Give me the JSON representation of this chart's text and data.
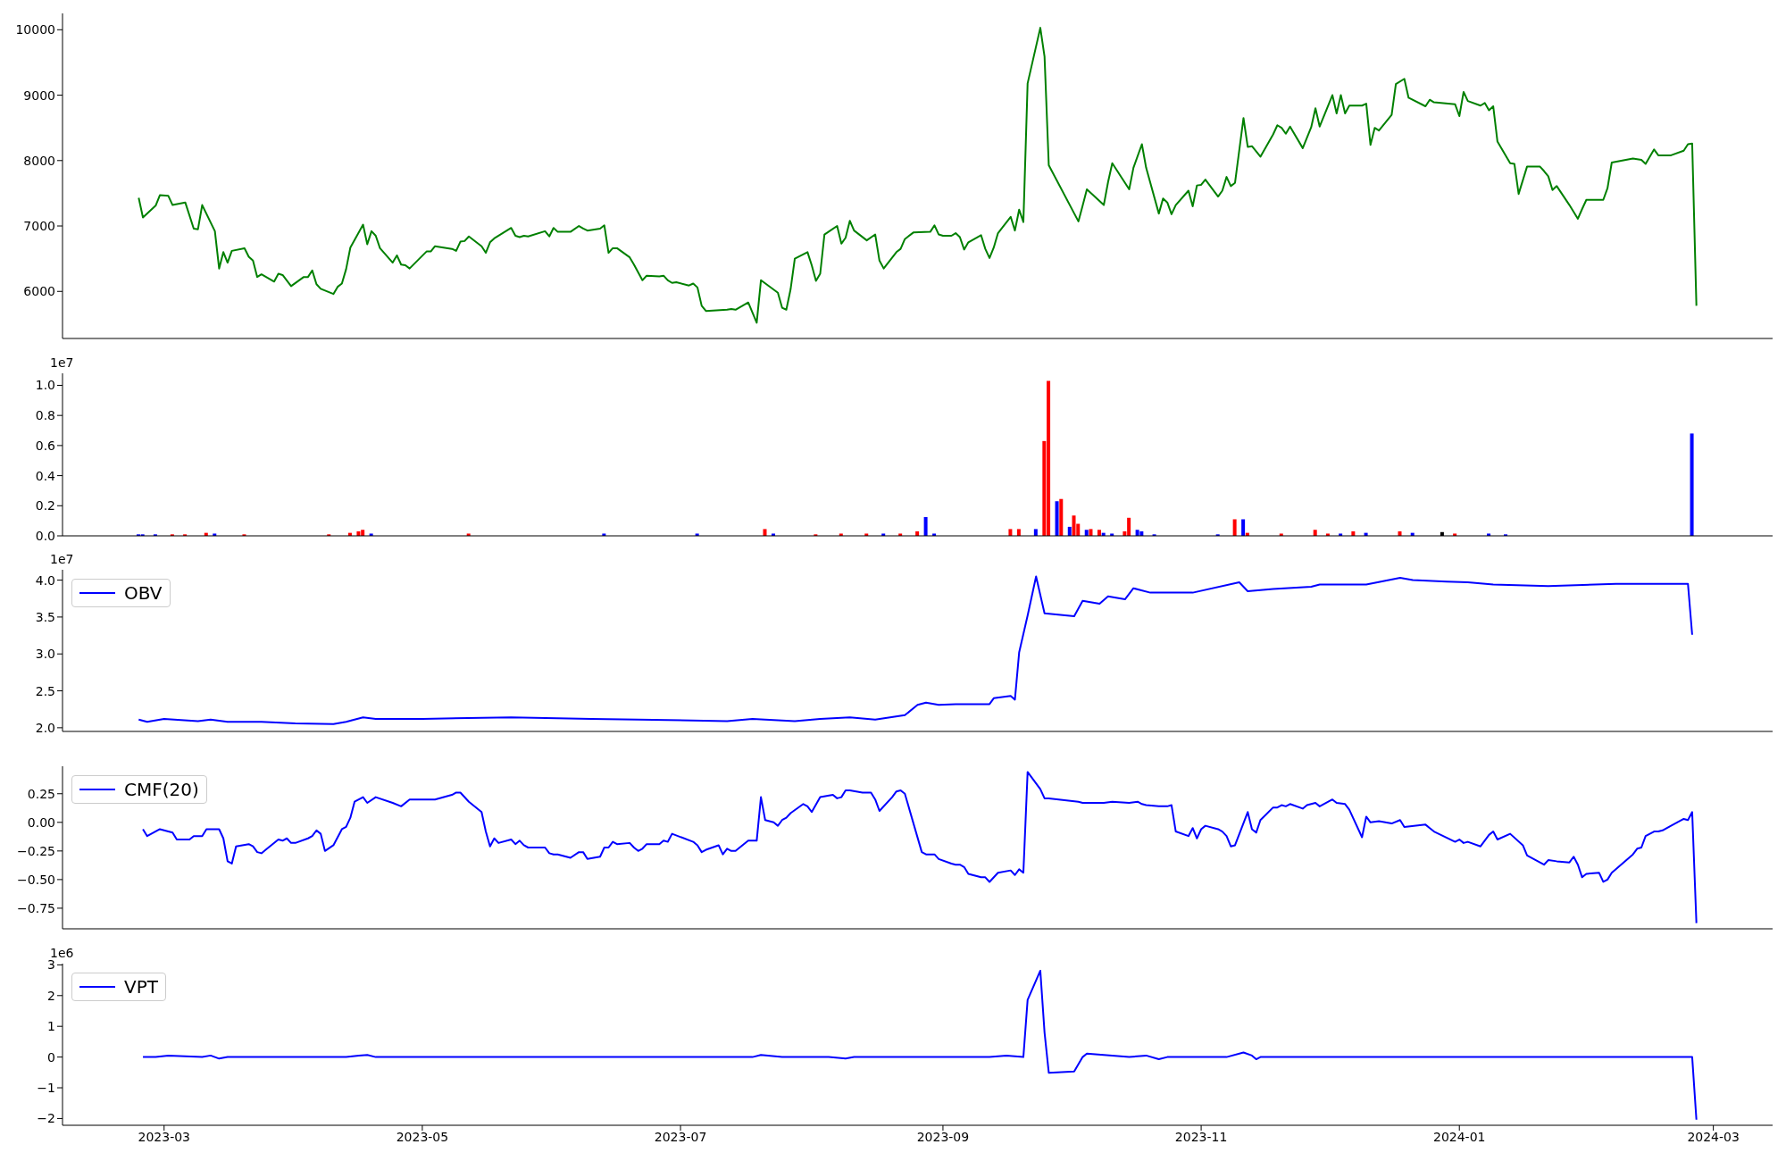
{
  "chart_data": [
    {
      "type": "line",
      "color": "#008000",
      "xlim": [
        "2023-02-05",
        "2024-03-15"
      ],
      "ylim": [
        5280,
        10250
      ],
      "yticks": [
        6000,
        7000,
        8000,
        9000,
        10000
      ],
      "tick_labels": "y",
      "x": [
        "2023-02-23",
        "2023-02-24",
        "2023-02-27",
        "2023-02-28",
        "2023-03-02",
        "2023-03-03",
        "2023-03-06",
        "2023-03-08",
        "2023-03-09",
        "2023-03-10",
        "2023-03-13",
        "2023-03-14",
        "2023-03-15",
        "2023-03-16",
        "2023-03-17",
        "2023-03-20",
        "2023-03-21",
        "2023-03-22",
        "2023-03-23",
        "2023-03-24",
        "2023-03-27",
        "2023-03-28",
        "2023-03-29",
        "2023-03-31",
        "2023-04-03",
        "2023-04-04",
        "2023-04-05",
        "2023-04-06",
        "2023-04-07",
        "2023-04-10",
        "2023-04-11",
        "2023-04-12",
        "2023-04-13",
        "2023-04-14",
        "2023-04-17",
        "2023-04-18",
        "2023-04-19",
        "2023-04-20",
        "2023-04-21",
        "2023-04-24",
        "2023-04-25",
        "2023-04-26",
        "2023-04-27",
        "2023-04-28",
        "2023-05-02",
        "2023-05-03",
        "2023-05-04",
        "2023-05-08",
        "2023-05-09",
        "2023-05-10",
        "2023-05-11",
        "2023-05-12",
        "2023-05-15",
        "2023-05-16",
        "2023-05-17",
        "2023-05-18",
        "2023-05-22",
        "2023-05-23",
        "2023-05-24",
        "2023-05-25",
        "2023-05-26",
        "2023-05-30",
        "2023-05-31",
        "2023-06-01",
        "2023-06-02",
        "2023-06-05",
        "2023-06-07",
        "2023-06-08",
        "2023-06-09",
        "2023-06-12",
        "2023-06-13",
        "2023-06-14",
        "2023-06-15",
        "2023-06-16",
        "2023-06-19",
        "2023-06-20",
        "2023-06-22",
        "2023-06-23",
        "2023-06-26",
        "2023-06-27",
        "2023-06-28",
        "2023-06-29",
        "2023-06-30",
        "2023-07-03",
        "2023-07-04",
        "2023-07-05",
        "2023-07-06",
        "2023-07-07",
        "2023-07-12",
        "2023-07-13",
        "2023-07-14",
        "2023-07-17",
        "2023-07-19",
        "2023-07-20",
        "2023-07-24",
        "2023-07-25",
        "2023-07-26",
        "2023-07-27",
        "2023-07-28",
        "2023-07-31",
        "2023-08-01",
        "2023-08-02",
        "2023-08-03",
        "2023-08-04",
        "2023-08-07",
        "2023-08-08",
        "2023-08-09",
        "2023-08-10",
        "2023-08-11",
        "2023-08-14",
        "2023-08-16",
        "2023-08-17",
        "2023-08-18",
        "2023-08-21",
        "2023-08-22",
        "2023-08-23",
        "2023-08-25",
        "2023-08-29",
        "2023-08-30",
        "2023-08-31",
        "2023-09-01",
        "2023-09-03",
        "2023-09-04",
        "2023-09-05",
        "2023-09-06",
        "2023-09-07",
        "2023-09-10",
        "2023-09-11",
        "2023-09-12",
        "2023-09-13",
        "2023-09-14",
        "2023-09-17",
        "2023-09-18",
        "2023-09-19",
        "2023-09-20",
        "2023-09-21",
        "2023-09-24",
        "2023-09-25",
        "2023-09-26",
        "2023-10-03",
        "2023-10-04",
        "2023-10-05",
        "2023-10-09",
        "2023-10-10",
        "2023-10-11",
        "2023-10-15",
        "2023-10-16",
        "2023-10-18",
        "2023-10-19",
        "2023-10-22",
        "2023-10-23",
        "2023-10-24",
        "2023-10-25",
        "2023-10-26",
        "2023-10-29",
        "2023-10-30",
        "2023-10-31",
        "2023-11-01",
        "2023-11-02",
        "2023-11-05",
        "2023-11-06",
        "2023-11-07",
        "2023-11-08",
        "2023-11-09",
        "2023-11-11",
        "2023-11-12",
        "2023-11-13",
        "2023-11-15",
        "2023-11-18",
        "2023-11-19",
        "2023-11-20",
        "2023-11-21",
        "2023-11-22",
        "2023-11-25",
        "2023-11-27",
        "2023-11-28",
        "2023-11-29",
        "2023-12-02",
        "2023-12-03",
        "2023-12-04",
        "2023-12-05",
        "2023-12-06",
        "2023-12-09",
        "2023-12-10",
        "2023-12-11",
        "2023-12-12",
        "2023-12-13",
        "2023-12-16",
        "2023-12-17",
        "2023-12-19",
        "2023-12-20",
        "2023-12-24",
        "2023-12-25",
        "2023-12-26",
        "2023-12-31",
        "2024-01-01",
        "2024-01-02",
        "2024-01-03",
        "2024-01-06",
        "2024-01-07",
        "2024-01-08",
        "2024-01-09",
        "2024-01-10",
        "2024-01-13",
        "2024-01-14",
        "2024-01-15",
        "2024-01-17",
        "2024-01-20",
        "2024-01-21",
        "2024-01-22",
        "2024-01-23",
        "2024-01-24",
        "2024-01-27",
        "2024-01-29",
        "2024-01-30",
        "2024-01-31",
        "2024-02-04",
        "2024-02-05",
        "2024-02-06",
        "2024-02-11",
        "2024-02-12",
        "2024-02-13",
        "2024-02-14",
        "2024-02-16",
        "2024-02-17",
        "2024-02-20",
        "2024-02-23",
        "2024-02-24",
        "2024-02-25",
        "2024-02-26"
      ],
      "values": [
        7430,
        7130,
        7310,
        7470,
        7460,
        7320,
        7360,
        6960,
        6950,
        7320,
        6920,
        6350,
        6600,
        6440,
        6620,
        6660,
        6530,
        6470,
        6220,
        6260,
        6150,
        6270,
        6250,
        6080,
        6220,
        6220,
        6320,
        6110,
        6040,
        5960,
        6070,
        6120,
        6340,
        6670,
        7020,
        6720,
        6920,
        6850,
        6660,
        6440,
        6550,
        6410,
        6400,
        6350,
        6610,
        6610,
        6690,
        6650,
        6620,
        6760,
        6770,
        6840,
        6690,
        6590,
        6750,
        6810,
        6970,
        6850,
        6830,
        6850,
        6840,
        6920,
        6840,
        6970,
        6910,
        6910,
        7000,
        6960,
        6930,
        6960,
        7010,
        6590,
        6660,
        6660,
        6520,
        6410,
        6170,
        6240,
        6230,
        6240,
        6170,
        6130,
        6140,
        6090,
        6120,
        6060,
        5780,
        5700,
        5720,
        5730,
        5720,
        5830,
        5520,
        6170,
        5980,
        5750,
        5720,
        6030,
        6500,
        6600,
        6400,
        6160,
        6270,
        6870,
        7000,
        6730,
        6820,
        7080,
        6930,
        6780,
        6870,
        6470,
        6350,
        6600,
        6650,
        6800,
        6900,
        6910,
        7010,
        6870,
        6850,
        6850,
        6890,
        6830,
        6640,
        6750,
        6860,
        6650,
        6510,
        6670,
        6890,
        7140,
        6930,
        7250,
        7060,
        9180,
        10030,
        9590,
        7930,
        7070,
        7310,
        7560,
        7320,
        7670,
        7960,
        7560,
        7890,
        8250,
        7890,
        7190,
        7420,
        7360,
        7180,
        7320,
        7540,
        7300,
        7620,
        7630,
        7710,
        7450,
        7540,
        7750,
        7610,
        7660,
        8650,
        8210,
        8220,
        8060,
        8400,
        8540,
        8500,
        8410,
        8520,
        8190,
        8510,
        8800,
        8520,
        9000,
        8720,
        9000,
        8720,
        8840,
        8840,
        8870,
        8240,
        8500,
        8460,
        8700,
        9170,
        9250,
        8960,
        8830,
        8930,
        8890,
        8860,
        8680,
        9050,
        8910,
        8840,
        8880,
        8770,
        8830,
        8290,
        7960,
        7950,
        7490,
        7910,
        7910,
        7840,
        7760,
        7550,
        7610,
        7320,
        7110,
        7260,
        7400,
        7400,
        7580,
        7970,
        8030,
        8020,
        8010,
        7950,
        8170,
        8080,
        8080,
        8150,
        8250,
        8260,
        5780
      ]
    },
    {
      "type": "bar",
      "xlim": [
        "2023-02-05",
        "2024-03-15"
      ],
      "ylim": [
        0,
        1.08
      ],
      "yticks": [
        {
          "value": 0,
          "label": "0.0"
        },
        0.2,
        0.4,
        0.6,
        0.8,
        {
          "value": 1,
          "label": "1.0"
        }
      ],
      "tick_labels": "y",
      "annotations": [
        "1e7"
      ],
      "x": [
        "2023-02-23",
        "2023-02-24",
        "2023-02-27",
        "2023-03-03",
        "2023-03-06",
        "2023-03-11",
        "2023-03-13",
        "2023-03-20",
        "2023-04-09",
        "2023-04-14",
        "2023-04-16",
        "2023-04-17",
        "2023-04-19",
        "2023-05-12",
        "2023-06-13",
        "2023-07-05",
        "2023-07-21",
        "2023-07-23",
        "2023-08-02",
        "2023-08-08",
        "2023-08-14",
        "2023-08-18",
        "2023-08-22",
        "2023-08-26",
        "2023-08-28",
        "2023-08-30",
        "2023-09-17",
        "2023-09-19",
        "2023-09-23",
        "2023-09-25",
        "2023-09-26",
        "2023-09-28",
        "2023-09-29",
        "2023-10-01",
        "2023-10-02",
        "2023-10-03",
        "2023-10-05",
        "2023-10-06",
        "2023-10-08",
        "2023-10-09",
        "2023-10-11",
        "2023-10-14",
        "2023-10-15",
        "2023-10-17",
        "2023-10-18",
        "2023-10-21",
        "2023-11-05",
        "2023-11-09",
        "2023-11-11",
        "2023-11-12",
        "2023-11-20",
        "2023-11-28",
        "2023-12-01",
        "2023-12-04",
        "2023-12-07",
        "2023-12-10",
        "2023-12-18",
        "2023-12-21",
        "2023-12-28",
        "2023-12-31",
        "2024-01-08",
        "2024-01-12",
        "2024-02-25"
      ],
      "values": [
        0.01,
        0.01,
        0.01,
        0.01,
        0.01,
        0.02,
        0.015,
        0.01,
        0.01,
        0.02,
        0.03,
        0.04,
        0.015,
        0.015,
        0.015,
        0.015,
        0.045,
        0.015,
        0.01,
        0.015,
        0.015,
        0.015,
        0.015,
        0.03,
        0.125,
        0.015,
        0.045,
        0.045,
        0.045,
        0.63,
        1.03,
        0.23,
        0.245,
        0.06,
        0.135,
        0.08,
        0.04,
        0.045,
        0.04,
        0.02,
        0.015,
        0.03,
        0.12,
        0.04,
        0.03,
        0.01,
        0.01,
        0.11,
        0.11,
        0.02,
        0.015,
        0.04,
        0.015,
        0.015,
        0.03,
        0.02,
        0.03,
        0.02,
        0.025,
        0.015,
        0.015,
        0.01,
        0.68
      ],
      "colors": [
        "#0000ff",
        "#0000ff",
        "#0000ff",
        "#ff0000",
        "#ff0000",
        "#ff0000",
        "#0000ff",
        "#ff0000",
        "#ff0000",
        "#ff0000",
        "#ff0000",
        "#ff0000",
        "#0000ff",
        "#ff0000",
        "#0000ff",
        "#0000ff",
        "#ff0000",
        "#0000ff",
        "#ff0000",
        "#ff0000",
        "#ff0000",
        "#0000ff",
        "#ff0000",
        "#ff0000",
        "#0000ff",
        "#0000ff",
        "#ff0000",
        "#ff0000",
        "#0000ff",
        "#ff0000",
        "#ff0000",
        "#0000ff",
        "#ff0000",
        "#0000ff",
        "#ff0000",
        "#ff0000",
        "#0000ff",
        "#ff0000",
        "#ff0000",
        "#0000ff",
        "#0000ff",
        "#ff0000",
        "#ff0000",
        "#0000ff",
        "#0000ff",
        "#0000ff",
        "#0000ff",
        "#ff0000",
        "#0000ff",
        "#ff0000",
        "#ff0000",
        "#ff0000",
        "#ff0000",
        "#0000ff",
        "#ff0000",
        "#0000ff",
        "#ff0000",
        "#0000ff",
        "#000000",
        "#ff0000",
        "#0000ff",
        "#0000ff",
        "#0000ff"
      ]
    },
    {
      "type": "line",
      "xlim": [
        "2023-02-05",
        "2024-03-15"
      ],
      "ylim": [
        1.95,
        4.14
      ],
      "yticks": [
        {
          "value": 2,
          "label": "2.0"
        },
        2.5,
        {
          "value": 3,
          "label": "3.0"
        },
        3.5,
        {
          "value": 4,
          "label": "4.0"
        }
      ],
      "tick_labels": "y",
      "legend": "top left",
      "annotations": [
        "1e7"
      ],
      "x": [
        "2023-02-23",
        "2023-02-25",
        "2023-03-01",
        "2023-03-09",
        "2023-03-12",
        "2023-03-16",
        "2023-03-24",
        "2023-04-01",
        "2023-04-10",
        "2023-04-13",
        "2023-04-17",
        "2023-04-20",
        "2023-05-01",
        "2023-05-22",
        "2023-06-10",
        "2023-06-21",
        "2023-07-12",
        "2023-07-18",
        "2023-07-28",
        "2023-08-03",
        "2023-08-10",
        "2023-08-16",
        "2023-08-23",
        "2023-08-26",
        "2023-08-28",
        "2023-08-31",
        "2023-09-04",
        "2023-09-12",
        "2023-09-13",
        "2023-09-17",
        "2023-09-18",
        "2023-09-19",
        "2023-09-21",
        "2023-09-23",
        "2023-09-25",
        "2023-10-02",
        "2023-10-04",
        "2023-10-08",
        "2023-10-10",
        "2023-10-14",
        "2023-10-16",
        "2023-10-20",
        "2023-10-30",
        "2023-11-10",
        "2023-11-12",
        "2023-11-18",
        "2023-11-27",
        "2023-11-29",
        "2023-12-10",
        "2023-12-18",
        "2023-12-21",
        "2023-12-29",
        "2024-01-03",
        "2024-01-09",
        "2024-01-22",
        "2024-02-07",
        "2024-02-24",
        "2024-02-25"
      ],
      "series": [
        {
          "name": "OBV",
          "color": "#0000ff",
          "values": [
            2.11,
            2.08,
            2.12,
            2.09,
            2.11,
            2.08,
            2.08,
            2.06,
            2.05,
            2.08,
            2.14,
            2.12,
            2.12,
            2.14,
            2.12,
            2.11,
            2.09,
            2.12,
            2.09,
            2.12,
            2.14,
            2.11,
            2.17,
            2.31,
            2.34,
            2.31,
            2.32,
            2.32,
            2.4,
            2.43,
            2.38,
            3.02,
            3.52,
            4.05,
            3.55,
            3.51,
            3.72,
            3.68,
            3.78,
            3.74,
            3.89,
            3.83,
            3.83,
            3.97,
            3.85,
            3.88,
            3.91,
            3.94,
            3.94,
            4.03,
            4.0,
            3.98,
            3.97,
            3.94,
            3.92,
            3.95,
            3.95,
            3.26
          ]
        }
      ]
    },
    {
      "type": "line",
      "xlim": [
        "2023-02-05",
        "2024-03-15"
      ],
      "ylim": [
        -0.93,
        0.49
      ],
      "yticks": [
        {
          "value": -0.75,
          "label": "−0.75"
        },
        {
          "value": -0.5,
          "label": "−0.50"
        },
        {
          "value": -0.25,
          "label": "−0.25"
        },
        {
          "value": 0,
          "label": "0.00"
        },
        0.25
      ],
      "tick_labels": "y",
      "legend": "top left",
      "x": [
        "2023-02-24",
        "2023-02-25",
        "2023-02-28",
        "2023-03-03",
        "2023-03-04",
        "2023-03-07",
        "2023-03-08",
        "2023-03-10",
        "2023-03-11",
        "2023-03-14",
        "2023-03-15",
        "2023-03-16",
        "2023-03-17",
        "2023-03-18",
        "2023-03-21",
        "2023-03-22",
        "2023-03-23",
        "2023-03-24",
        "2023-03-25",
        "2023-03-28",
        "2023-03-29",
        "2023-03-30",
        "2023-03-31",
        "2023-04-01",
        "2023-04-04",
        "2023-04-05",
        "2023-04-06",
        "2023-04-07",
        "2023-04-08",
        "2023-04-10",
        "2023-04-12",
        "2023-04-13",
        "2023-04-14",
        "2023-04-15",
        "2023-04-17",
        "2023-04-18",
        "2023-04-20",
        "2023-04-24",
        "2023-04-26",
        "2023-04-28",
        "2023-05-02",
        "2023-05-03",
        "2023-05-04",
        "2023-05-08",
        "2023-05-09",
        "2023-05-10",
        "2023-05-12",
        "2023-05-15",
        "2023-05-16",
        "2023-05-17",
        "2023-05-18",
        "2023-05-19",
        "2023-05-22",
        "2023-05-23",
        "2023-05-24",
        "2023-05-25",
        "2023-05-26",
        "2023-05-30",
        "2023-05-31",
        "2023-06-01",
        "2023-06-02",
        "2023-06-05",
        "2023-06-07",
        "2023-06-08",
        "2023-06-09",
        "2023-06-12",
        "2023-06-13",
        "2023-06-14",
        "2023-06-15",
        "2023-06-16",
        "2023-06-19",
        "2023-06-20",
        "2023-06-21",
        "2023-06-22",
        "2023-06-23",
        "2023-06-26",
        "2023-06-27",
        "2023-06-28",
        "2023-06-29",
        "2023-07-04",
        "2023-07-05",
        "2023-07-06",
        "2023-07-07",
        "2023-07-10",
        "2023-07-11",
        "2023-07-12",
        "2023-07-13",
        "2023-07-14",
        "2023-07-17",
        "2023-07-19",
        "2023-07-20",
        "2023-07-21",
        "2023-07-23",
        "2023-07-24",
        "2023-07-25",
        "2023-07-26",
        "2023-07-27",
        "2023-07-30",
        "2023-07-31",
        "2023-08-01",
        "2023-08-03",
        "2023-08-06",
        "2023-08-07",
        "2023-08-08",
        "2023-08-09",
        "2023-08-10",
        "2023-08-13",
        "2023-08-15",
        "2023-08-16",
        "2023-08-17",
        "2023-08-20",
        "2023-08-21",
        "2023-08-22",
        "2023-08-23",
        "2023-08-27",
        "2023-08-28",
        "2023-08-29",
        "2023-08-30",
        "2023-08-31",
        "2023-09-03",
        "2023-09-04",
        "2023-09-05",
        "2023-09-06",
        "2023-09-07",
        "2023-09-10",
        "2023-09-11",
        "2023-09-12",
        "2023-09-14",
        "2023-09-17",
        "2023-09-18",
        "2023-09-19",
        "2023-09-20",
        "2023-09-21",
        "2023-09-24",
        "2023-09-25",
        "2023-09-26",
        "2023-10-03",
        "2023-10-04",
        "2023-10-09",
        "2023-10-11",
        "2023-10-15",
        "2023-10-17",
        "2023-10-18",
        "2023-10-19",
        "2023-10-22",
        "2023-10-23",
        "2023-10-24",
        "2023-10-25",
        "2023-10-26",
        "2023-10-29",
        "2023-10-30",
        "2023-10-31",
        "2023-11-01",
        "2023-11-02",
        "2023-11-05",
        "2023-11-06",
        "2023-11-07",
        "2023-11-08",
        "2023-11-09",
        "2023-11-12",
        "2023-11-13",
        "2023-11-14",
        "2023-11-15",
        "2023-11-18",
        "2023-11-19",
        "2023-11-20",
        "2023-11-21",
        "2023-11-22",
        "2023-11-25",
        "2023-11-26",
        "2023-11-28",
        "2023-11-29",
        "2023-12-02",
        "2023-12-03",
        "2023-12-05",
        "2023-12-06",
        "2023-12-09",
        "2023-12-10",
        "2023-12-11",
        "2023-12-13",
        "2023-12-16",
        "2023-12-18",
        "2023-12-19",
        "2023-12-24",
        "2023-12-25",
        "2023-12-26",
        "2023-12-31",
        "2024-01-01",
        "2024-01-02",
        "2024-01-03",
        "2024-01-06",
        "2024-01-08",
        "2024-01-09",
        "2024-01-10",
        "2024-01-13",
        "2024-01-16",
        "2024-01-17",
        "2024-01-21",
        "2024-01-22",
        "2024-01-24",
        "2024-01-27",
        "2024-01-28",
        "2024-01-29",
        "2024-01-30",
        "2024-01-31",
        "2024-02-03",
        "2024-02-04",
        "2024-02-05",
        "2024-02-06",
        "2024-02-11",
        "2024-02-12",
        "2024-02-13",
        "2024-02-14",
        "2024-02-16",
        "2024-02-17",
        "2024-02-18",
        "2024-02-20",
        "2024-02-23",
        "2024-02-24",
        "2024-02-25",
        "2024-02-26"
      ],
      "series": [
        {
          "name": "CMF(20)",
          "color": "#0000ff",
          "values": [
            -0.06,
            -0.12,
            -0.06,
            -0.09,
            -0.15,
            -0.15,
            -0.12,
            -0.12,
            -0.06,
            -0.06,
            -0.14,
            -0.34,
            -0.36,
            -0.21,
            -0.19,
            -0.21,
            -0.26,
            -0.27,
            -0.24,
            -0.15,
            -0.16,
            -0.14,
            -0.18,
            -0.18,
            -0.14,
            -0.12,
            -0.07,
            -0.1,
            -0.25,
            -0.2,
            -0.06,
            -0.04,
            0.04,
            0.18,
            0.22,
            0.17,
            0.22,
            0.17,
            0.14,
            0.2,
            0.2,
            0.2,
            0.2,
            0.24,
            0.26,
            0.26,
            0.18,
            0.09,
            -0.08,
            -0.21,
            -0.14,
            -0.18,
            -0.15,
            -0.19,
            -0.16,
            -0.2,
            -0.22,
            -0.22,
            -0.27,
            -0.28,
            -0.28,
            -0.31,
            -0.26,
            -0.26,
            -0.32,
            -0.3,
            -0.22,
            -0.22,
            -0.17,
            -0.19,
            -0.18,
            -0.22,
            -0.25,
            -0.23,
            -0.19,
            -0.19,
            -0.16,
            -0.17,
            -0.1,
            -0.17,
            -0.2,
            -0.26,
            -0.24,
            -0.2,
            -0.28,
            -0.23,
            -0.25,
            -0.25,
            -0.16,
            -0.16,
            0.22,
            0.02,
            0,
            -0.03,
            0.02,
            0.04,
            0.08,
            0.16,
            0.14,
            0.09,
            0.22,
            0.24,
            0.21,
            0.22,
            0.28,
            0.28,
            0.26,
            0.26,
            0.2,
            0.1,
            0.22,
            0.27,
            0.28,
            0.25,
            -0.26,
            -0.28,
            -0.28,
            -0.28,
            -0.32,
            -0.36,
            -0.37,
            -0.37,
            -0.39,
            -0.45,
            -0.48,
            -0.48,
            -0.52,
            -0.44,
            -0.42,
            -0.46,
            -0.41,
            -0.44,
            0.44,
            0.29,
            0.21,
            0.21,
            0.18,
            0.17,
            0.17,
            0.18,
            0.17,
            0.18,
            0.16,
            0.15,
            0.14,
            0.14,
            0.14,
            0.15,
            -0.08,
            -0.12,
            -0.05,
            -0.14,
            -0.06,
            -0.03,
            -0.06,
            -0.08,
            -0.12,
            -0.21,
            -0.2,
            0.09,
            -0.06,
            -0.09,
            0.02,
            0.13,
            0.13,
            0.15,
            0.14,
            0.16,
            0.12,
            0.15,
            0.17,
            0.14,
            0.2,
            0.17,
            0.16,
            0.11,
            -0.13,
            0.05,
            0,
            0.01,
            -0.01,
            0.02,
            -0.04,
            -0.02,
            -0.05,
            -0.08,
            -0.17,
            -0.15,
            -0.18,
            -0.17,
            -0.21,
            -0.11,
            -0.08,
            -0.15,
            -0.1,
            -0.2,
            -0.29,
            -0.37,
            -0.33,
            -0.34,
            -0.35,
            -0.3,
            -0.37,
            -0.48,
            -0.45,
            -0.44,
            -0.52,
            -0.5,
            -0.44,
            -0.28,
            -0.23,
            -0.22,
            -0.12,
            -0.08,
            -0.08,
            -0.07,
            -0.03,
            0.03,
            0.02,
            0.09,
            -0.88
          ]
        }
      ]
    },
    {
      "type": "line",
      "xlim": [
        "2023-02-05",
        "2024-03-15"
      ],
      "ylim": [
        -2.22,
        3.04
      ],
      "yticks": [
        {
          "value": -2,
          "label": "−2"
        },
        {
          "value": -1,
          "label": "−1"
        },
        0,
        1,
        2,
        3
      ],
      "xticks": [
        "2023-03",
        "2023-05",
        "2023-07",
        "2023-09",
        "2023-11",
        "2024-01",
        "2024-03"
      ],
      "legend": "top left",
      "annotations": [
        "1e6"
      ],
      "x": [
        "2023-02-24",
        "2023-02-27",
        "2023-03-02",
        "2023-03-10",
        "2023-03-12",
        "2023-03-14",
        "2023-03-16",
        "2023-04-13",
        "2023-04-16",
        "2023-04-18",
        "2023-04-20",
        "2023-06-14",
        "2023-07-18",
        "2023-07-20",
        "2023-07-25",
        "2023-08-05",
        "2023-08-09",
        "2023-08-11",
        "2023-09-12",
        "2023-09-16",
        "2023-09-20",
        "2023-09-21",
        "2023-09-24",
        "2023-09-25",
        "2023-09-26",
        "2023-10-02",
        "2023-10-04",
        "2023-10-05",
        "2023-10-11",
        "2023-10-15",
        "2023-10-19",
        "2023-10-22",
        "2023-10-24",
        "2023-11-07",
        "2023-11-11",
        "2023-11-13",
        "2023-11-14",
        "2023-11-15",
        "2024-02-25",
        "2024-02-26"
      ],
      "series": [
        {
          "name": "VPT",
          "color": "#0000ff",
          "values": [
            0,
            0,
            0.05,
            0,
            0.05,
            -0.05,
            0,
            0,
            0.05,
            0.07,
            0,
            0,
            0,
            0.07,
            0,
            0,
            -0.05,
            0,
            0,
            0.05,
            0,
            1.86,
            2.81,
            0.8,
            -0.51,
            -0.47,
            0,
            0.11,
            0.05,
            0,
            0.05,
            -0.07,
            0,
            0,
            0.15,
            0.05,
            -0.07,
            0,
            0,
            -2.04
          ]
        }
      ]
    }
  ]
}
